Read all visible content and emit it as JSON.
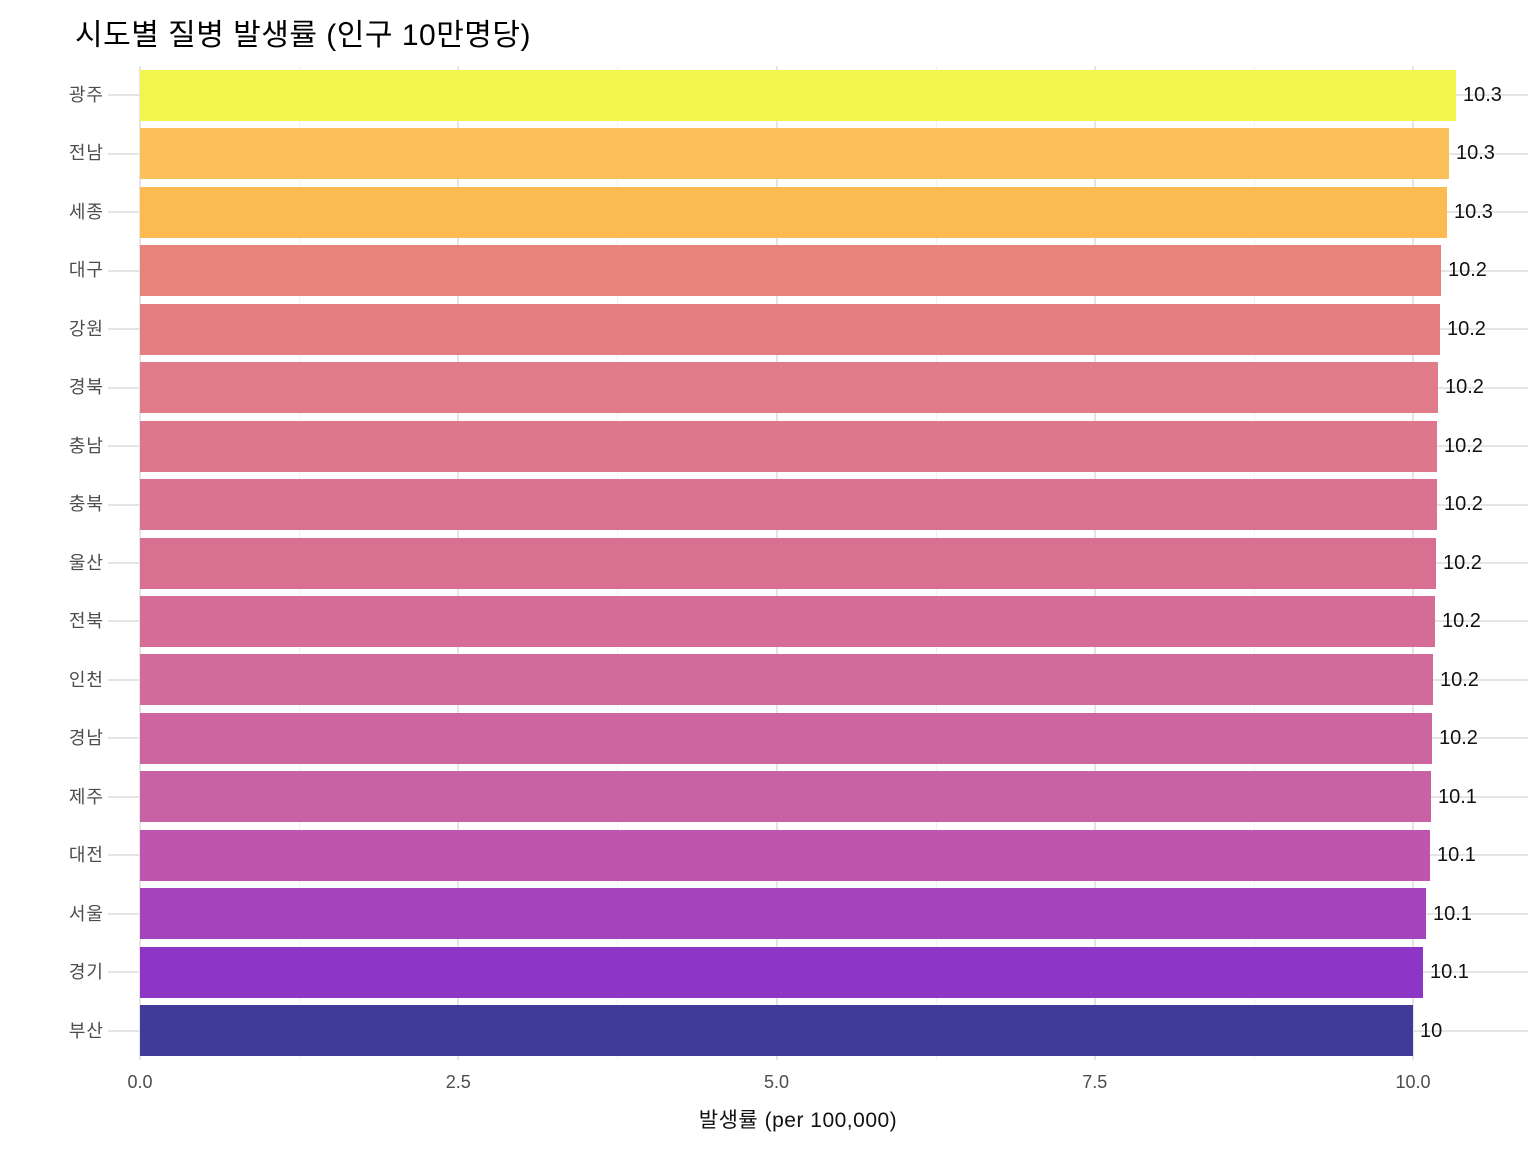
{
  "title": "시도별 질병 발생률 (인구 10만명당)",
  "chart_data": {
    "type": "bar",
    "orientation": "horizontal",
    "title": "시도별 질병 발생률 (인구 10만명당)",
    "xlabel": "발생률 (per 100,000)",
    "ylabel": "",
    "categories": [
      "광주",
      "전남",
      "세종",
      "대구",
      "강원",
      "경북",
      "충남",
      "충북",
      "울산",
      "전북",
      "인천",
      "경남",
      "제주",
      "대전",
      "서울",
      "경기",
      "부산"
    ],
    "values": [
      10.34,
      10.28,
      10.27,
      10.22,
      10.21,
      10.2,
      10.19,
      10.185,
      10.18,
      10.17,
      10.16,
      10.15,
      10.14,
      10.13,
      10.1,
      10.08,
      10.0
    ],
    "value_labels": [
      "10.3",
      "10.3",
      "10.3",
      "10.2",
      "10.2",
      "10.2",
      "10.2",
      "10.2",
      "10.2",
      "10.2",
      "10.2",
      "10.2",
      "10.1",
      "10.1",
      "10.1",
      "10.1",
      "10"
    ],
    "bar_colors": [
      "#f2f54c",
      "#fcc058",
      "#fbba52",
      "#e8837c",
      "#e47e82",
      "#e07b89",
      "#dd778c",
      "#da738f",
      "#d87092",
      "#d56d97",
      "#d16b9b",
      "#cd66a0",
      "#c961a5",
      "#c055ad",
      "#a443bb",
      "#8d36c5",
      "#403a99"
    ],
    "colormap": "plasma",
    "xlim": [
      0,
      10.85
    ],
    "xticks": [
      0,
      2.5,
      5,
      7.5,
      10
    ],
    "xtick_labels": [
      "0.0",
      "2.5",
      "5.0",
      "7.5",
      "10.0"
    ],
    "minor_gridlines": [
      1.25,
      3.75,
      6.25,
      8.75
    ],
    "grid": true,
    "legend": "none"
  },
  "colors": {
    "background": "#ffffff",
    "grid_major": "#e5e5e5",
    "grid_minor": "#f2f2f2",
    "axis_text": "#4d4d4d",
    "title_text": "#000000",
    "value_text": "#111111"
  }
}
